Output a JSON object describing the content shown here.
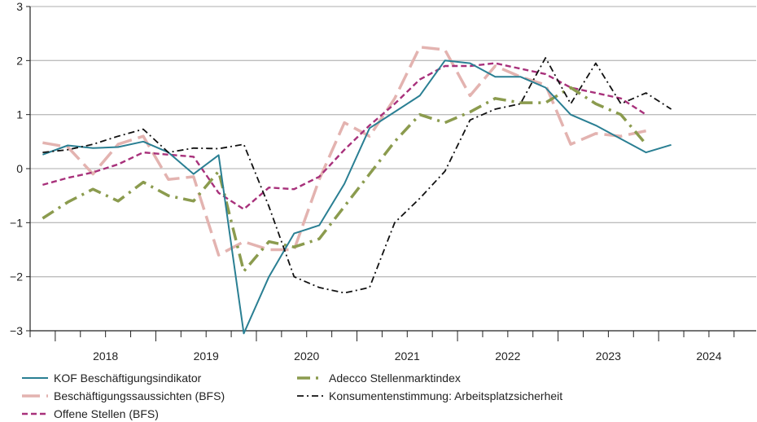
{
  "chart_data": {
    "type": "line",
    "title": "",
    "xlabel": "",
    "ylabel": "",
    "ylim": [
      -3,
      3
    ],
    "yticks": [
      3,
      2,
      1,
      0,
      -1,
      -2,
      -3
    ],
    "ytick_labels": [
      "3",
      "2",
      "1",
      "0",
      "−1",
      "−2",
      "−3"
    ],
    "xlim": [
      2017.75,
      2024.97
    ],
    "year_labels": [
      "2018",
      "2019",
      "2020",
      "2021",
      "2022",
      "2023",
      "2024"
    ],
    "grid": true,
    "legend_position": "bottom",
    "series": [
      {
        "name": "KOF Beschäftigungsindikator",
        "color": "#2a7f93",
        "style": "solid",
        "x": [
          2017.875,
          2018.125,
          2018.375,
          2018.625,
          2018.875,
          2019.125,
          2019.375,
          2019.625,
          2019.875,
          2020.125,
          2020.375,
          2020.625,
          2020.875,
          2021.125,
          2021.375,
          2021.625,
          2021.875,
          2022.125,
          2022.375,
          2022.625,
          2022.875,
          2023.125,
          2023.375,
          2023.625,
          2023.875,
          2024.125
        ],
        "values": [
          0.26,
          0.43,
          0.38,
          0.4,
          0.5,
          0.3,
          -0.1,
          0.25,
          -3.05,
          -2.0,
          -1.2,
          -1.05,
          -0.28,
          0.75,
          1.05,
          1.35,
          2.0,
          1.95,
          1.7,
          1.7,
          1.5,
          1.0,
          0.8,
          0.55,
          0.3,
          0.44
        ]
      },
      {
        "name": "Beschäftigungssaussichten (BFS)",
        "color": "#e3b3b0",
        "style": "longdash",
        "x": [
          2017.875,
          2018.125,
          2018.375,
          2018.625,
          2018.875,
          2019.125,
          2019.375,
          2019.625,
          2019.875,
          2020.125,
          2020.375,
          2020.625,
          2020.875,
          2021.125,
          2021.375,
          2021.625,
          2021.875,
          2022.125,
          2022.375,
          2022.625,
          2022.875,
          2023.125,
          2023.375,
          2023.625,
          2023.875
        ],
        "values": [
          0.48,
          0.4,
          -0.1,
          0.45,
          0.6,
          -0.2,
          -0.15,
          -1.6,
          -1.35,
          -1.5,
          -1.5,
          -0.2,
          0.85,
          0.6,
          1.3,
          2.25,
          2.2,
          1.35,
          1.9,
          1.7,
          1.55,
          0.45,
          0.65,
          0.6,
          0.7
        ]
      },
      {
        "name": "Offene Stellen (BFS)",
        "color": "#a8317b",
        "style": "dashed",
        "x": [
          2017.875,
          2018.125,
          2018.375,
          2018.625,
          2018.875,
          2019.125,
          2019.375,
          2019.625,
          2019.875,
          2020.125,
          2020.375,
          2020.625,
          2020.875,
          2021.125,
          2021.375,
          2021.625,
          2021.875,
          2022.125,
          2022.375,
          2022.625,
          2022.875,
          2023.125,
          2023.375,
          2023.625,
          2023.875
        ],
        "values": [
          -0.3,
          -0.17,
          -0.07,
          0.08,
          0.3,
          0.26,
          0.22,
          -0.45,
          -0.75,
          -0.35,
          -0.38,
          -0.15,
          0.35,
          0.8,
          1.2,
          1.65,
          1.9,
          1.9,
          1.95,
          1.85,
          1.75,
          1.5,
          1.4,
          1.3,
          1.0
        ]
      },
      {
        "name": "Adecco Stellenmarktindex",
        "color": "#8b9b4e",
        "style": "dashdot",
        "x": [
          2017.875,
          2018.125,
          2018.375,
          2018.625,
          2018.875,
          2019.125,
          2019.375,
          2019.625,
          2019.875,
          2020.125,
          2020.375,
          2020.625,
          2020.875,
          2021.125,
          2021.375,
          2021.625,
          2021.875,
          2022.125,
          2022.375,
          2022.625,
          2022.875,
          2023.125,
          2023.375,
          2023.625,
          2023.875
        ],
        "values": [
          -0.92,
          -0.62,
          -0.38,
          -0.6,
          -0.25,
          -0.5,
          -0.6,
          -0.05,
          -1.9,
          -1.35,
          -1.45,
          -1.3,
          -0.7,
          -0.1,
          0.5,
          1.0,
          0.85,
          1.05,
          1.3,
          1.22,
          1.22,
          1.5,
          1.2,
          1.0,
          0.45
        ]
      },
      {
        "name": "Konsumentenstimmung: Arbeitsplatzsicherheit",
        "color": "#111111",
        "style": "dashdot-thin",
        "x": [
          2017.875,
          2018.125,
          2018.375,
          2018.625,
          2018.875,
          2019.125,
          2019.375,
          2019.625,
          2019.875,
          2020.125,
          2020.375,
          2020.625,
          2020.875,
          2021.125,
          2021.375,
          2021.625,
          2021.875,
          2022.125,
          2022.375,
          2022.625,
          2022.875,
          2023.125,
          2023.375,
          2023.625,
          2023.875,
          2024.125
        ],
        "values": [
          0.3,
          0.35,
          0.45,
          0.6,
          0.73,
          0.3,
          0.38,
          0.37,
          0.45,
          -0.7,
          -2.0,
          -2.2,
          -2.3,
          -2.2,
          -1.0,
          -0.55,
          -0.05,
          0.9,
          1.1,
          1.2,
          2.05,
          1.2,
          1.95,
          1.2,
          1.4,
          1.1
        ]
      }
    ]
  }
}
